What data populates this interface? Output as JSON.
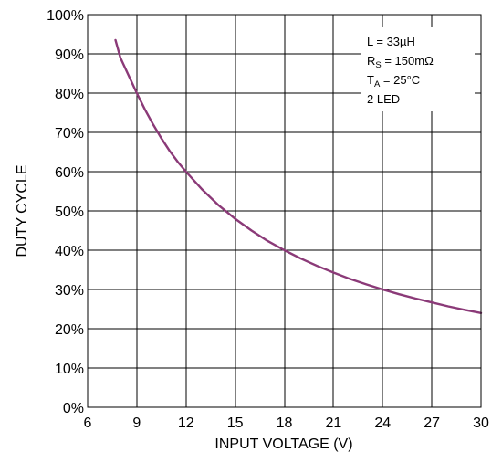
{
  "chart_data": {
    "type": "line",
    "title": "",
    "xlabel": "INPUT VOLTAGE (V)",
    "ylabel": "DUTY CYCLE",
    "xlim": [
      6,
      30
    ],
    "ylim": [
      0,
      100
    ],
    "x_ticks": [
      6,
      9,
      12,
      15,
      18,
      21,
      24,
      27,
      30
    ],
    "x_tick_labels": [
      "6",
      "9",
      "12",
      "15",
      "18",
      "21",
      "24",
      "27",
      "30"
    ],
    "y_ticks": [
      0,
      10,
      20,
      30,
      40,
      50,
      60,
      70,
      80,
      90,
      100
    ],
    "y_tick_labels": [
      "0%",
      "10%",
      "20%",
      "30%",
      "40%",
      "50%",
      "60%",
      "70%",
      "80%",
      "90%",
      "100%"
    ],
    "grid": true,
    "series": [
      {
        "color": "#8b3a78",
        "x": [
          7.7,
          8.0,
          8.5,
          9.0,
          9.5,
          10.0,
          10.5,
          11.0,
          11.5,
          12.0,
          13.0,
          14.0,
          15.0,
          16.0,
          17.0,
          18.0,
          19.0,
          20.0,
          21.0,
          22.0,
          23.0,
          24.0,
          25.0,
          26.0,
          27.0,
          28.0,
          29.0,
          30.0
        ],
        "y": [
          93.5,
          89.0,
          84.5,
          80.0,
          75.8,
          72.0,
          68.5,
          65.3,
          62.5,
          60.0,
          55.4,
          51.4,
          48.0,
          45.0,
          42.3,
          40.0,
          37.9,
          36.0,
          34.3,
          32.7,
          31.3,
          30.0,
          28.8,
          27.7,
          26.7,
          25.7,
          24.8,
          24.0
        ]
      }
    ],
    "annotation": {
      "lines": [
        {
          "main": "L = 33µH",
          "sub": "",
          "rest": ""
        },
        {
          "main": "R",
          "sub": "S",
          "rest": " = 150mΩ"
        },
        {
          "main": "T",
          "sub": "A",
          "rest": " = 25°C"
        },
        {
          "main": "2 LED",
          "sub": "",
          "rest": ""
        }
      ],
      "placement": "top-right"
    }
  }
}
